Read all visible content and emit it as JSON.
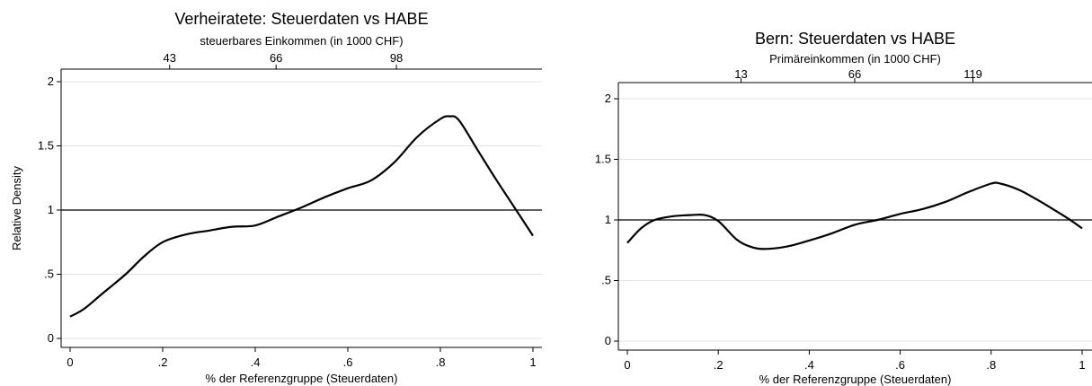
{
  "chart_data": [
    {
      "type": "line",
      "title": "Verheiratete: Steuerdaten vs HABE",
      "xlabel": "% der Referenzgruppe (Steuerdaten)",
      "ylabel": "Relative Density",
      "top_axis_label": "steuerbares Einkommen (in 1000 CHF)",
      "x_ticks": [
        "0",
        ".2",
        ".4",
        ".6",
        ".8",
        "1"
      ],
      "y_ticks": [
        "0",
        ".5",
        "1",
        "1.5",
        "2"
      ],
      "top_ticks": [
        {
          "label": "43",
          "at": 0.215
        },
        {
          "label": "66",
          "at": 0.445
        },
        {
          "label": "98",
          "at": 0.705
        }
      ],
      "xlim": [
        0,
        1
      ],
      "ylim": [
        0,
        2
      ],
      "grid": true,
      "reference_line": 1,
      "series": [
        {
          "x": [
            0.0,
            0.03,
            0.07,
            0.12,
            0.16,
            0.2,
            0.25,
            0.3,
            0.35,
            0.4,
            0.45,
            0.5,
            0.55,
            0.6,
            0.65,
            0.7,
            0.75,
            0.8,
            0.82,
            0.84,
            0.88,
            0.92,
            0.96,
            1.0
          ],
          "y": [
            0.17,
            0.23,
            0.35,
            0.5,
            0.64,
            0.75,
            0.81,
            0.84,
            0.87,
            0.88,
            0.95,
            1.02,
            1.1,
            1.17,
            1.23,
            1.37,
            1.57,
            1.71,
            1.73,
            1.7,
            1.47,
            1.24,
            1.02,
            0.8
          ]
        }
      ]
    },
    {
      "type": "line",
      "title": "Bern: Steuerdaten vs HABE",
      "xlabel": "% der Referenzgruppe (Steuerdaten)",
      "ylabel": "",
      "top_axis_label": "Primäreinkommen (in 1000 CHF)",
      "x_ticks": [
        "0",
        ".2",
        ".4",
        ".6",
        ".8",
        "1"
      ],
      "y_ticks": [
        "0",
        ".5",
        "1",
        "1.5",
        "2"
      ],
      "top_ticks": [
        {
          "label": "13",
          "at": 0.25
        },
        {
          "label": "66",
          "at": 0.5
        },
        {
          "label": "119",
          "at": 0.76
        }
      ],
      "xlim": [
        0,
        1
      ],
      "ylim": [
        0,
        2
      ],
      "grid": true,
      "reference_line": 1,
      "series": [
        {
          "x": [
            0.0,
            0.03,
            0.06,
            0.1,
            0.14,
            0.17,
            0.2,
            0.24,
            0.27,
            0.3,
            0.35,
            0.4,
            0.45,
            0.5,
            0.55,
            0.6,
            0.65,
            0.7,
            0.75,
            0.8,
            0.82,
            0.86,
            0.9,
            0.94,
            0.97,
            1.0
          ],
          "y": [
            0.81,
            0.93,
            1.0,
            1.03,
            1.04,
            1.04,
            0.99,
            0.84,
            0.78,
            0.76,
            0.78,
            0.83,
            0.89,
            0.96,
            1.0,
            1.05,
            1.09,
            1.15,
            1.23,
            1.3,
            1.3,
            1.25,
            1.17,
            1.08,
            1.01,
            0.93
          ]
        }
      ]
    }
  ]
}
